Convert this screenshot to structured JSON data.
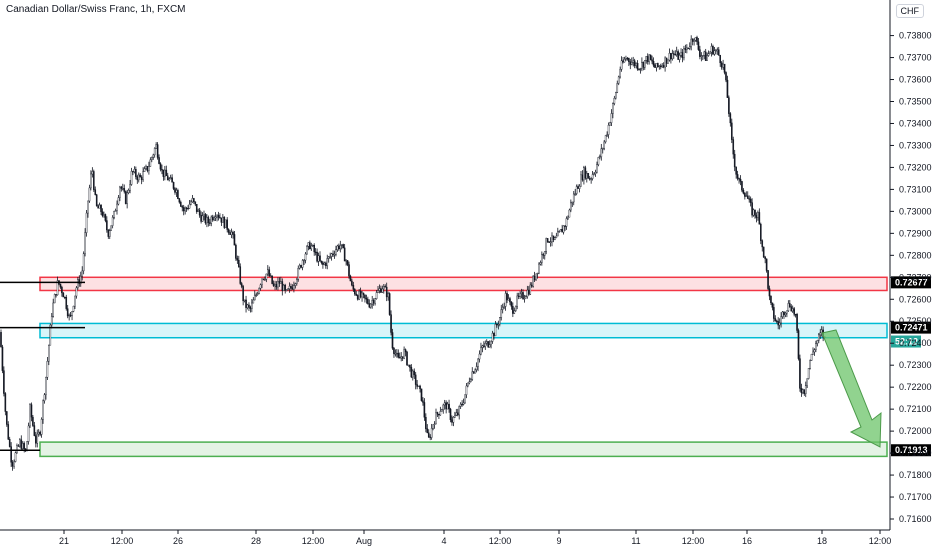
{
  "header": {
    "title": "Canadian Dollar/Swiss Franc, 1h, FXCM",
    "currency": "CHF"
  },
  "chart_data": {
    "type": "candlestick",
    "title": "Canadian Dollar/Swiss Franc, 1h, FXCM",
    "ylim": [
      0.7155,
      0.7388
    ],
    "yticks": [
      0.716,
      0.717,
      0.718,
      0.719,
      0.72,
      0.721,
      0.722,
      0.723,
      0.724,
      0.725,
      0.726,
      0.727,
      0.728,
      0.729,
      0.73,
      0.731,
      0.732,
      0.733,
      0.734,
      0.735,
      0.736,
      0.737,
      0.738
    ],
    "ytick_labels": [
      "0.71600",
      "0.71700",
      "0.71800",
      "0.71900",
      "0.72000",
      "0.72100",
      "0.72200",
      "0.72300",
      "0.72400",
      "0.72500",
      "0.72600",
      "0.72700",
      "0.72800",
      "0.72900",
      "0.73000",
      "0.73100",
      "0.73200",
      "0.73300",
      "0.73400",
      "0.73500",
      "0.73600",
      "0.73700",
      "0.73800"
    ],
    "xticks": [
      "21",
      "12:00",
      "26",
      "28",
      "12:00",
      "Aug",
      "4",
      "12:00",
      "9",
      "11",
      "12:00",
      "16",
      "18",
      "12:00"
    ],
    "path": [
      [
        0,
        0.7245
      ],
      [
        6,
        0.7205
      ],
      [
        12,
        0.7185
      ],
      [
        20,
        0.7195
      ],
      [
        26,
        0.719
      ],
      [
        30,
        0.721
      ],
      [
        36,
        0.7195
      ],
      [
        40,
        0.72
      ],
      [
        46,
        0.7225
      ],
      [
        52,
        0.7255
      ],
      [
        58,
        0.7268
      ],
      [
        64,
        0.7262
      ],
      [
        70,
        0.725
      ],
      [
        76,
        0.7265
      ],
      [
        82,
        0.7272
      ],
      [
        88,
        0.7305
      ],
      [
        92,
        0.732
      ],
      [
        96,
        0.7302
      ],
      [
        102,
        0.73
      ],
      [
        108,
        0.729
      ],
      [
        114,
        0.7298
      ],
      [
        120,
        0.7312
      ],
      [
        126,
        0.7305
      ],
      [
        132,
        0.7318
      ],
      [
        140,
        0.7315
      ],
      [
        148,
        0.732
      ],
      [
        156,
        0.733
      ],
      [
        162,
        0.7318
      ],
      [
        168,
        0.7315
      ],
      [
        176,
        0.731
      ],
      [
        184,
        0.73
      ],
      [
        192,
        0.7305
      ],
      [
        200,
        0.7298
      ],
      [
        208,
        0.7295
      ],
      [
        216,
        0.73
      ],
      [
        224,
        0.7295
      ],
      [
        232,
        0.729
      ],
      [
        238,
        0.7275
      ],
      [
        244,
        0.7258
      ],
      [
        250,
        0.7255
      ],
      [
        256,
        0.7262
      ],
      [
        262,
        0.727
      ],
      [
        268,
        0.7272
      ],
      [
        274,
        0.7265
      ],
      [
        280,
        0.7268
      ],
      [
        286,
        0.7262
      ],
      [
        292,
        0.7266
      ],
      [
        298,
        0.7272
      ],
      [
        304,
        0.728
      ],
      [
        310,
        0.7285
      ],
      [
        316,
        0.728
      ],
      [
        322,
        0.7275
      ],
      [
        328,
        0.7278
      ],
      [
        334,
        0.7282
      ],
      [
        340,
        0.7285
      ],
      [
        346,
        0.7278
      ],
      [
        352,
        0.7265
      ],
      [
        358,
        0.7262
      ],
      [
        364,
        0.726
      ],
      [
        370,
        0.7258
      ],
      [
        376,
        0.7262
      ],
      [
        382,
        0.7266
      ],
      [
        388,
        0.7262
      ],
      [
        392,
        0.724
      ],
      [
        398,
        0.7232
      ],
      [
        404,
        0.7236
      ],
      [
        410,
        0.7228
      ],
      [
        416,
        0.7222
      ],
      [
        422,
        0.7215
      ],
      [
        428,
        0.7195
      ],
      [
        434,
        0.7205
      ],
      [
        440,
        0.721
      ],
      [
        446,
        0.7212
      ],
      [
        452,
        0.7205
      ],
      [
        458,
        0.7208
      ],
      [
        464,
        0.7215
      ],
      [
        470,
        0.7225
      ],
      [
        476,
        0.723
      ],
      [
        482,
        0.7238
      ],
      [
        488,
        0.724
      ],
      [
        494,
        0.7245
      ],
      [
        500,
        0.7252
      ],
      [
        506,
        0.7262
      ],
      [
        512,
        0.7255
      ],
      [
        518,
        0.726
      ],
      [
        524,
        0.7262
      ],
      [
        530,
        0.7265
      ],
      [
        536,
        0.7272
      ],
      [
        542,
        0.728
      ],
      [
        548,
        0.7288
      ],
      [
        554,
        0.7286
      ],
      [
        560,
        0.729
      ],
      [
        566,
        0.7295
      ],
      [
        572,
        0.7305
      ],
      [
        578,
        0.7312
      ],
      [
        584,
        0.7318
      ],
      [
        590,
        0.7315
      ],
      [
        596,
        0.732
      ],
      [
        602,
        0.7328
      ],
      [
        608,
        0.7338
      ],
      [
        614,
        0.735
      ],
      [
        620,
        0.7365
      ],
      [
        626,
        0.737
      ],
      [
        632,
        0.7368
      ],
      [
        640,
        0.7366
      ],
      [
        648,
        0.737
      ],
      [
        656,
        0.7365
      ],
      [
        664,
        0.7368
      ],
      [
        672,
        0.7372
      ],
      [
        680,
        0.737
      ],
      [
        688,
        0.7375
      ],
      [
        694,
        0.738
      ],
      [
        700,
        0.7372
      ],
      [
        706,
        0.737
      ],
      [
        712,
        0.7374
      ],
      [
        718,
        0.7372
      ],
      [
        724,
        0.7365
      ],
      [
        728,
        0.735
      ],
      [
        732,
        0.733
      ],
      [
        736,
        0.7318
      ],
      [
        740,
        0.7312
      ],
      [
        746,
        0.7308
      ],
      [
        752,
        0.73
      ],
      [
        758,
        0.7298
      ],
      [
        762,
        0.7285
      ],
      [
        766,
        0.7275
      ],
      [
        770,
        0.7258
      ],
      [
        774,
        0.7252
      ],
      [
        778,
        0.7248
      ],
      [
        784,
        0.7255
      ],
      [
        790,
        0.7258
      ],
      [
        796,
        0.7252
      ],
      [
        800,
        0.722
      ],
      [
        804,
        0.7218
      ],
      [
        810,
        0.7232
      ],
      [
        816,
        0.724
      ],
      [
        822,
        0.7245
      ],
      [
        826,
        0.724
      ]
    ],
    "zones": [
      {
        "name": "resistance-zone",
        "top": 0.727,
        "bottom": 0.7264,
        "color": "#f23645"
      },
      {
        "name": "mid-zone",
        "top": 0.7249,
        "bottom": 0.72425,
        "color": "#00bcd4"
      },
      {
        "name": "support-zone",
        "top": 0.7195,
        "bottom": 0.71885,
        "color": "#4caf50"
      }
    ],
    "levels": [
      {
        "name": "level-72677",
        "value": 0.72677,
        "label": "0.72677",
        "box_color": "#000000"
      },
      {
        "name": "level-72471",
        "value": 0.72471,
        "label": "0.72471",
        "box_color": "#000000"
      },
      {
        "name": "level-71913",
        "value": 0.71913,
        "label": "0.71913",
        "box_color": "#000000"
      }
    ],
    "current_price": {
      "value": 0.72435,
      "label": "52:12",
      "color": "#26a69a"
    },
    "hline_color": "#000000",
    "arrow_color": "#6cc46a"
  }
}
